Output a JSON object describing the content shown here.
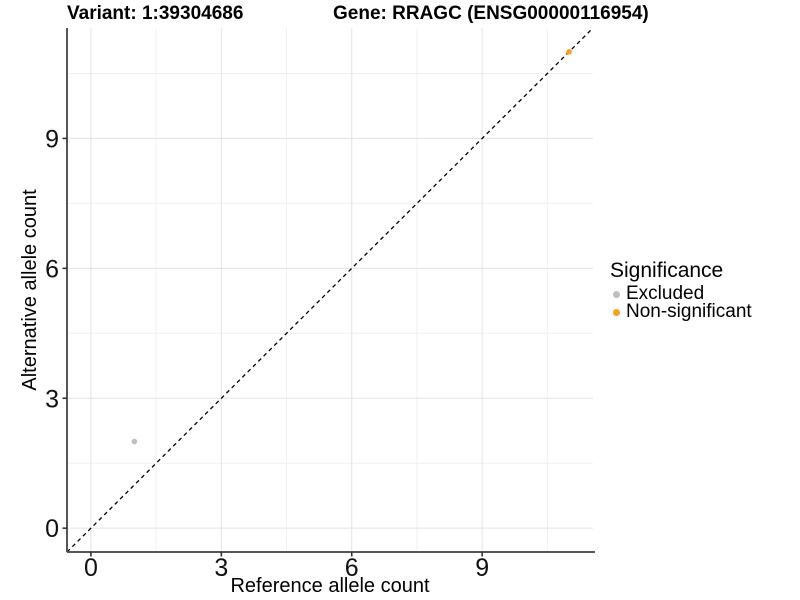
{
  "titles": {
    "variant": "Variant: 1:39304686",
    "gene": "Gene: RRAGC (ENSG00000116954)"
  },
  "chart_data": {
    "type": "scatter",
    "xlabel": "Reference allele count",
    "ylabel": "Alternative allele count",
    "xlim": [
      -0.55,
      11.55
    ],
    "ylim": [
      -0.55,
      11.55
    ],
    "x_ticks": [
      0,
      3,
      6,
      9
    ],
    "y_ticks": [
      0,
      3,
      6,
      9
    ],
    "x_minor_gridlines": [
      1.5,
      4.5,
      7.5,
      10.5
    ],
    "y_minor_gridlines": [
      1.5,
      4.5,
      7.5,
      10.5
    ],
    "grid": "major-and-minor",
    "reference_line": {
      "type": "abline",
      "slope": 1,
      "intercept": 0,
      "style": "dashed",
      "color": "#000000"
    },
    "series": [
      {
        "name": "Excluded",
        "color": "#BEBEBE",
        "points": [
          {
            "x": 1,
            "y": 2
          }
        ]
      },
      {
        "name": "Non-significant",
        "color": "#F9A11B",
        "points": [
          {
            "x": 11,
            "y": 11
          }
        ]
      }
    ],
    "legend": {
      "title": "Significance",
      "position": "right"
    },
    "style": {
      "major_grid_color": "#e3e3e3",
      "minor_grid_color": "#f0f0f0",
      "axis_line_color": "#555555",
      "tick_color": "#333333",
      "background": "#ffffff"
    }
  }
}
